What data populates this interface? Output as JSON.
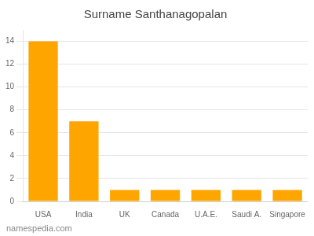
{
  "chart_data": {
    "type": "bar",
    "title": "Surname Santhanagopalan",
    "categories": [
      "USA",
      "India",
      "UK",
      "Canada",
      "U.A.E.",
      "Saudi A.",
      "Singapore"
    ],
    "values": [
      14,
      7,
      1,
      1,
      1,
      1,
      1
    ],
    "color": "#FFA500",
    "ylim": [
      0,
      15
    ],
    "yticks": [
      0,
      2,
      4,
      6,
      8,
      10,
      12,
      14
    ],
    "grid": true,
    "annotations": [
      "namespedia.com"
    ]
  }
}
